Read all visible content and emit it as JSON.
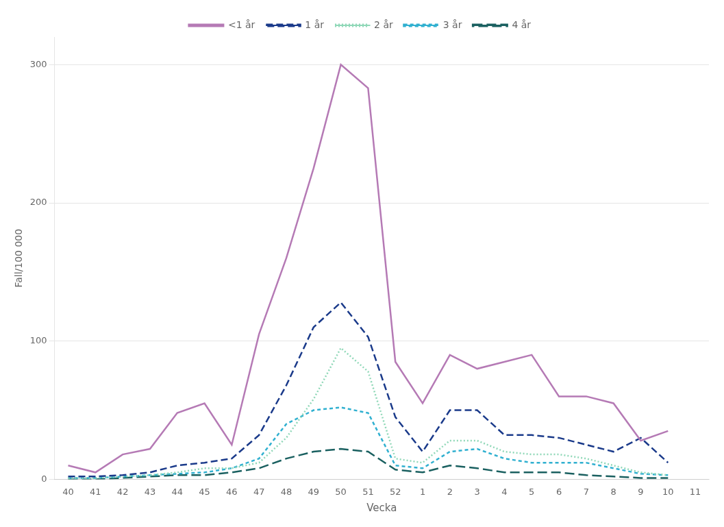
{
  "chart_data": {
    "type": "line",
    "categories": [
      "40",
      "41",
      "42",
      "43",
      "44",
      "45",
      "46",
      "47",
      "48",
      "49",
      "50",
      "51",
      "52",
      "1",
      "2",
      "3",
      "4",
      "5",
      "6",
      "7",
      "8",
      "9",
      "10",
      "11"
    ],
    "series": [
      {
        "name": "<1 år",
        "color": "#b57ab5",
        "line_style": "solid",
        "values": [
          10,
          5,
          18,
          22,
          48,
          55,
          25,
          105,
          160,
          225,
          300,
          283,
          85,
          55,
          90,
          80,
          85,
          90,
          60,
          60,
          55,
          28,
          35,
          null
        ]
      },
      {
        "name": "1 år",
        "color": "#1a3a8a",
        "line_style": "dashed",
        "values": [
          2,
          2,
          3,
          5,
          10,
          12,
          15,
          32,
          68,
          110,
          128,
          103,
          45,
          20,
          50,
          50,
          32,
          32,
          30,
          25,
          20,
          30,
          12,
          null
        ]
      },
      {
        "name": "2 år",
        "color": "#90d8b8",
        "line_style": "dotted",
        "values": [
          1,
          1,
          2,
          3,
          5,
          8,
          8,
          12,
          30,
          58,
          95,
          78,
          15,
          12,
          28,
          28,
          20,
          18,
          18,
          15,
          10,
          5,
          3,
          null
        ]
      },
      {
        "name": "3 år",
        "color": "#30b0d0",
        "line_style": "shortdash",
        "values": [
          1,
          1,
          2,
          3,
          4,
          5,
          8,
          15,
          40,
          50,
          52,
          48,
          10,
          8,
          20,
          22,
          15,
          12,
          12,
          12,
          8,
          4,
          3,
          null
        ]
      },
      {
        "name": "4 år",
        "color": "#1a6060",
        "line_style": "longdash",
        "values": [
          0,
          0,
          1,
          2,
          3,
          3,
          5,
          8,
          15,
          20,
          22,
          20,
          7,
          5,
          10,
          8,
          5,
          5,
          5,
          3,
          2,
          1,
          1,
          null
        ]
      }
    ],
    "xlabel": "Vecka",
    "ylabel": "Fall/100 000",
    "ylim": [
      0,
      320
    ],
    "yticks": [
      0,
      100,
      200,
      300
    ],
    "grid": "y",
    "legend": "top"
  }
}
